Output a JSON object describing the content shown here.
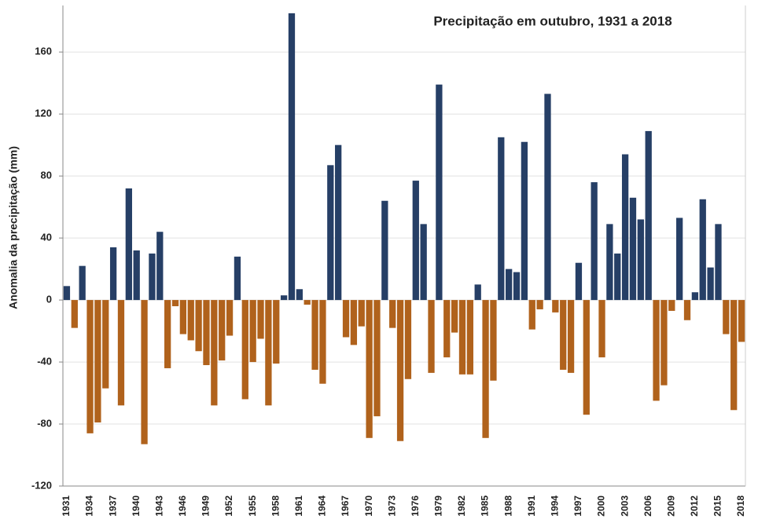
{
  "chart_data": {
    "type": "bar",
    "title": "Precipitação em outubro, 1931 a 2018",
    "y_label": "Anomalia da precipitação (mm)",
    "categories": [
      "1931",
      null,
      null,
      "1934",
      null,
      null,
      "1937",
      null,
      null,
      "1940",
      null,
      null,
      "1943",
      null,
      null,
      "1946",
      null,
      null,
      "1949",
      null,
      null,
      "1952",
      null,
      null,
      "1955",
      null,
      null,
      "1958",
      null,
      null,
      "1961",
      null,
      null,
      "1964",
      null,
      null,
      "1967",
      null,
      null,
      "1970",
      null,
      null,
      "1973",
      null,
      null,
      "1976",
      null,
      null,
      "1979",
      null,
      null,
      "1982",
      null,
      null,
      "1985",
      null,
      null,
      "1988",
      null,
      null,
      "1991",
      null,
      null,
      "1994",
      null,
      null,
      "1997",
      null,
      null,
      "2000",
      null,
      null,
      "2003",
      null,
      null,
      "2006",
      null,
      null,
      "2009",
      null,
      null,
      "2012",
      null,
      null,
      "2015",
      null,
      null,
      "2018"
    ],
    "values": [
      9,
      -18,
      22,
      -86,
      -79,
      -57,
      34,
      -68,
      72,
      32,
      -93,
      30,
      44,
      -44,
      -4,
      -22,
      -26,
      -33,
      -42,
      -68,
      -39,
      -23,
      28,
      -64,
      -40,
      -25,
      -68,
      -41,
      3,
      185,
      7,
      -3,
      -45,
      -54,
      87,
      100,
      -24,
      -29,
      -17,
      -89,
      -75,
      64,
      -18,
      -91,
      -51,
      77,
      49,
      -47,
      139,
      -37,
      -21,
      -48,
      -48,
      10,
      -89,
      -52,
      105,
      20,
      18,
      102,
      -19,
      -6,
      133,
      -8,
      -45,
      -47,
      24,
      -74,
      76,
      -37,
      49,
      30,
      94,
      66,
      52,
      109,
      -65,
      -55,
      -7,
      53,
      -13,
      5,
      65,
      21,
      49,
      -22,
      -71,
      -27
    ],
    "colors": {
      "positive": "#263f66",
      "negative": "#b0621c"
    },
    "ylim": [
      -120,
      190
    ],
    "yticks": [
      -120,
      -80,
      -40,
      0,
      40,
      80,
      120,
      160
    ],
    "grid": true
  }
}
